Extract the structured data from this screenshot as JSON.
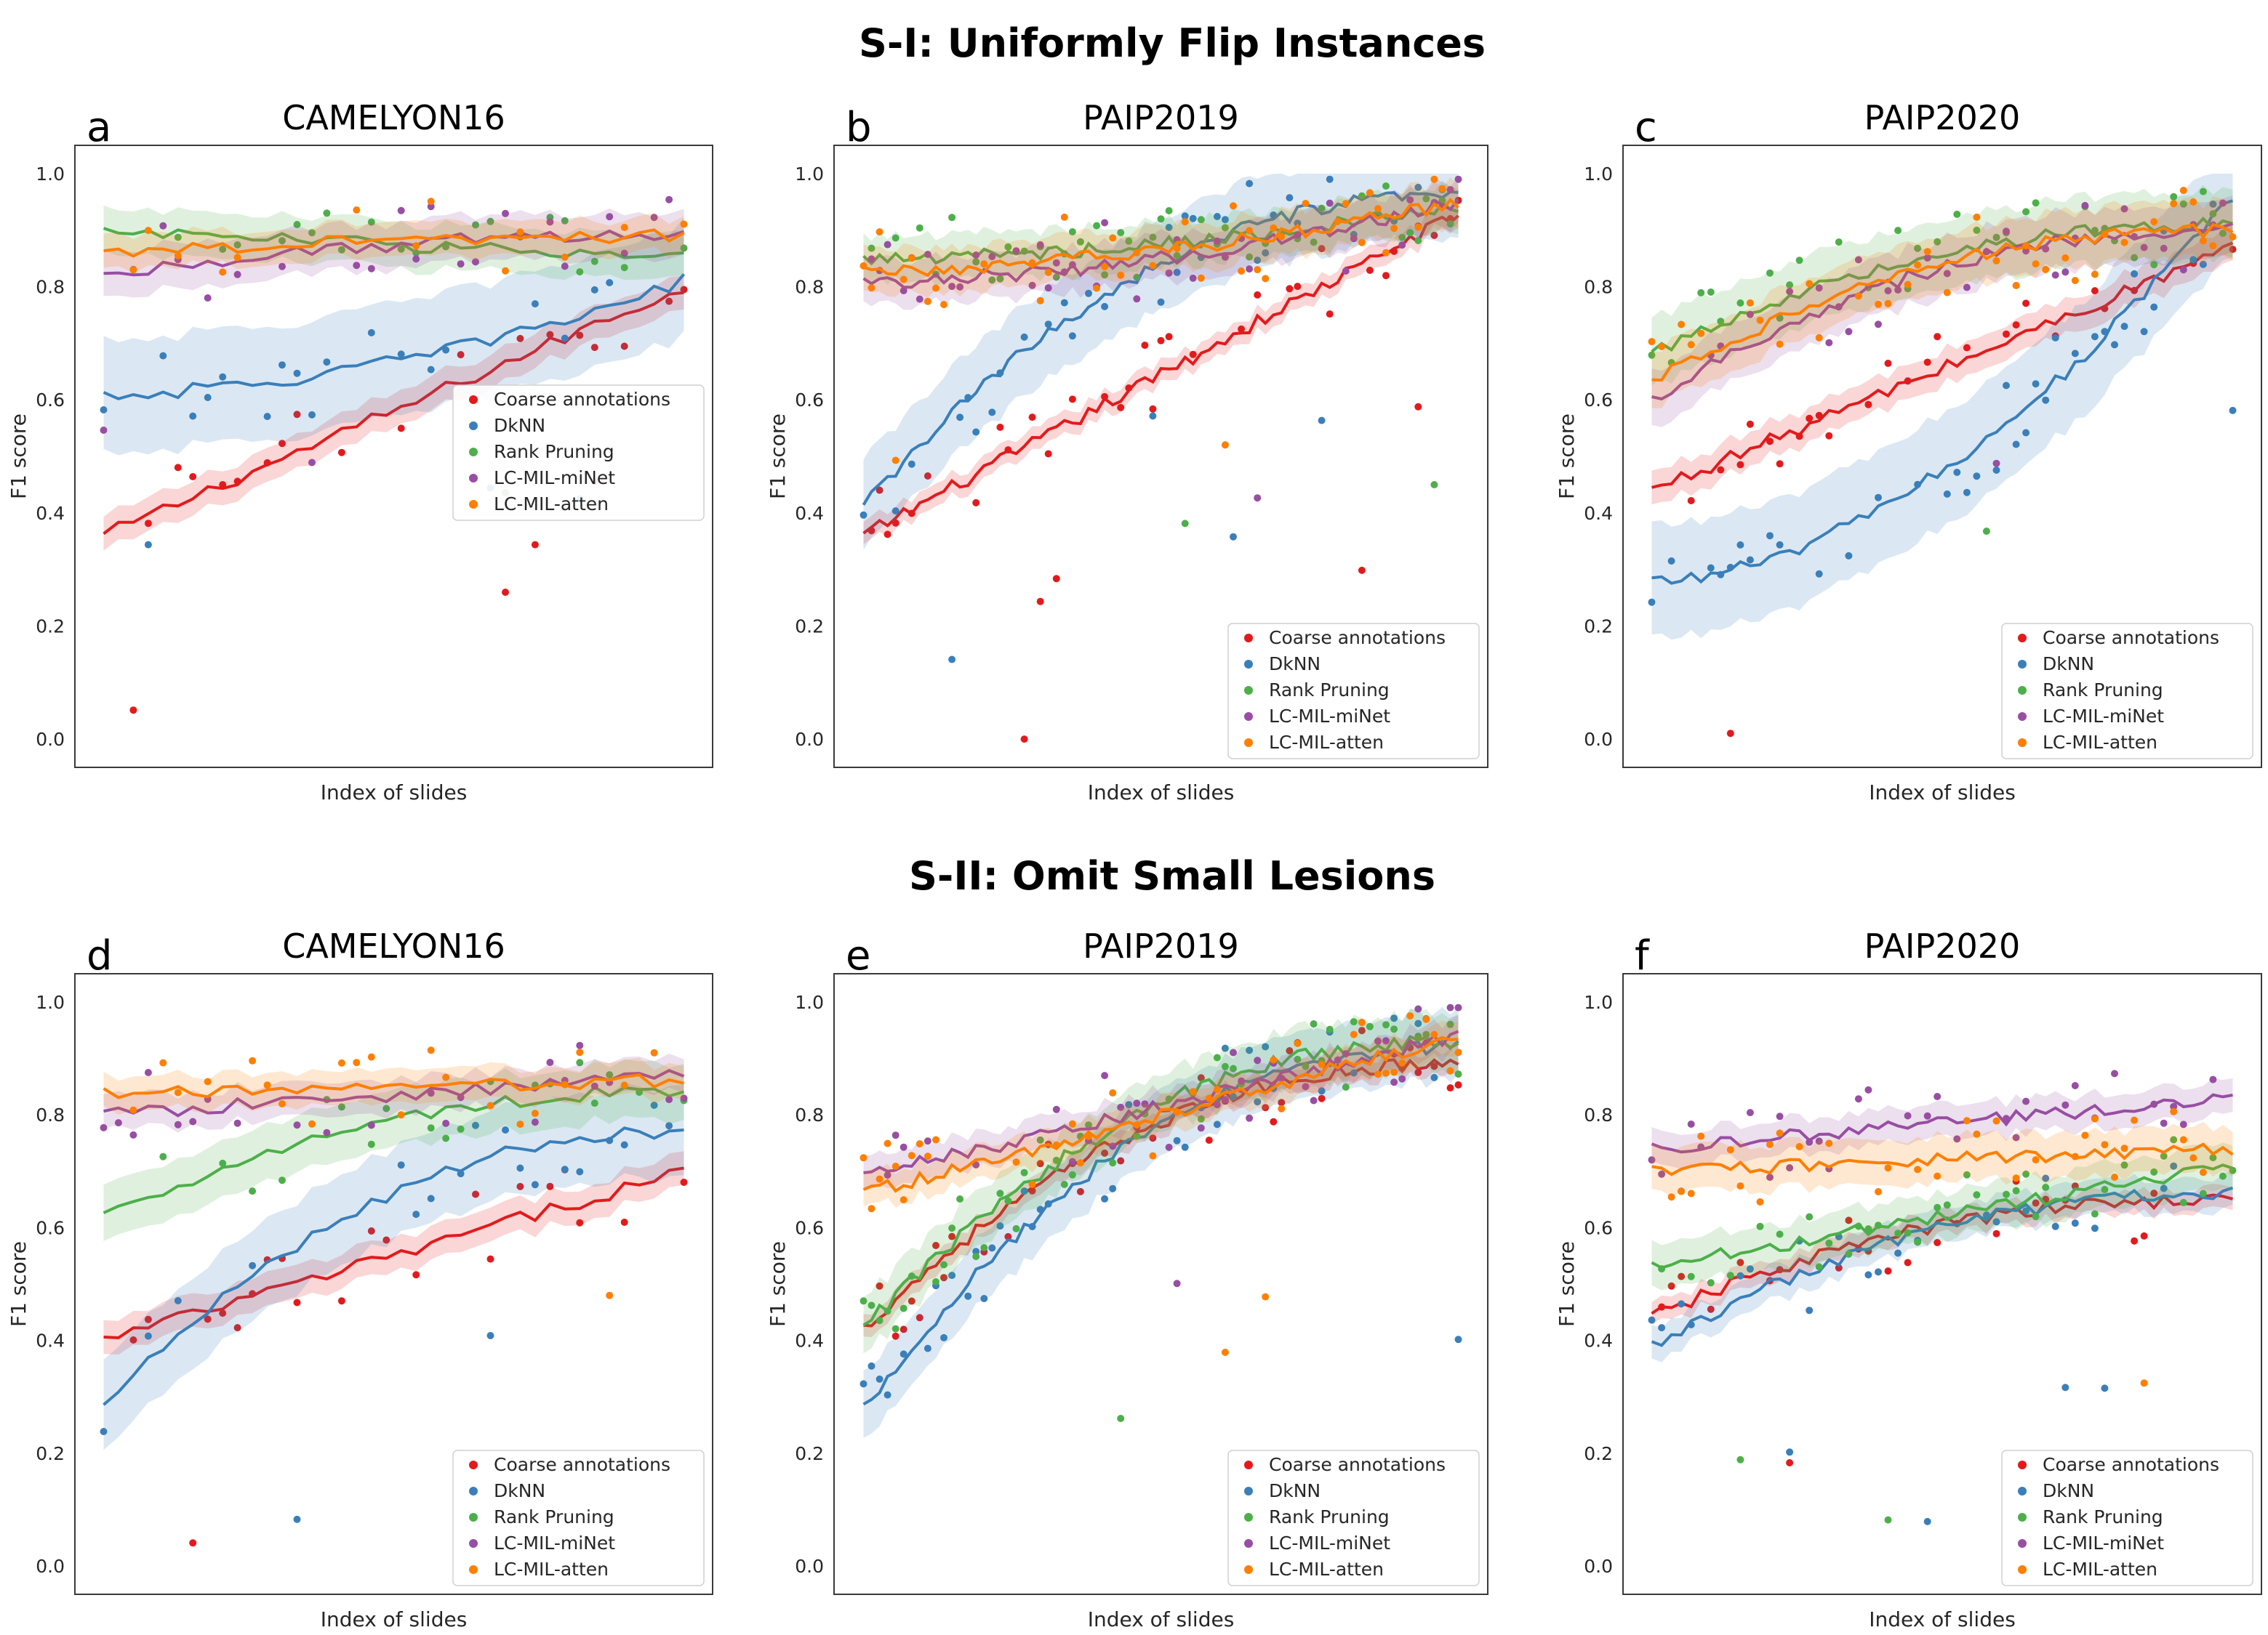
{
  "section_titles": [
    "S-I: Uniformly Flip Instances",
    "S-II: Omit Small Lesions"
  ],
  "colors": {
    "Coarse annotations": "#e31a1c",
    "DkNN": "#3a7fba",
    "Rank Pruning": "#4daf4a",
    "LC-MIL-miNet": "#984ea3",
    "LC-MIL-atten": "#ff7f00"
  },
  "chart_data": [
    {
      "type": "scatter",
      "panel": "a",
      "title": "CAMELYON16",
      "xlabel": "Index of slides",
      "ylabel": "F1 score",
      "ylim": [
        -0.05,
        1.05
      ],
      "yticks": [
        "0.0",
        "0.2",
        "0.4",
        "0.6",
        "0.8",
        "1.0"
      ],
      "n_slides": 40,
      "legend": [
        "Coarse annotations",
        "DkNN",
        "Rank Pruning",
        "LC-MIL-miNet",
        "LC-MIL-atten"
      ],
      "series": [
        {
          "name": "Coarse annotations",
          "trend_start": 0.36,
          "trend_end": 0.8,
          "trend_shape": "linear",
          "band": 0.03
        },
        {
          "name": "DkNN",
          "trend_start": 0.61,
          "trend_end": 0.81,
          "trend_shape": "late",
          "band": 0.1
        },
        {
          "name": "Rank Pruning",
          "trend_start": 0.9,
          "trend_end": 0.85,
          "trend_shape": "linear",
          "band": 0.04
        },
        {
          "name": "LC-MIL-miNet",
          "trend_start": 0.82,
          "trend_end": 0.89,
          "trend_shape": "early",
          "band": 0.04
        },
        {
          "name": "LC-MIL-atten",
          "trend_start": 0.86,
          "trend_end": 0.89,
          "trend_shape": "early",
          "band": 0.03
        }
      ]
    },
    {
      "type": "scatter",
      "panel": "b",
      "title": "PAIP2019",
      "xlabel": "Index of slides",
      "ylabel": "F1 score",
      "ylim": [
        -0.05,
        1.05
      ],
      "yticks": [
        "0.0",
        "0.2",
        "0.4",
        "0.6",
        "0.8",
        "1.0"
      ],
      "n_slides": 75,
      "legend": [
        "Coarse annotations",
        "DkNN",
        "Rank Pruning",
        "LC-MIL-miNet",
        "LC-MIL-atten"
      ],
      "series": [
        {
          "name": "Coarse annotations",
          "trend_start": 0.36,
          "trend_end": 0.93,
          "trend_shape": "linear",
          "band": 0.02
        },
        {
          "name": "DkNN",
          "trend_start": 0.41,
          "trend_end": 0.96,
          "trend_shape": "early",
          "band": 0.08
        },
        {
          "name": "Rank Pruning",
          "trend_start": 0.85,
          "trend_end": 0.94,
          "trend_shape": "late",
          "band": 0.04
        },
        {
          "name": "LC-MIL-miNet",
          "trend_start": 0.81,
          "trend_end": 0.95,
          "trend_shape": "late",
          "band": 0.04
        },
        {
          "name": "LC-MIL-atten",
          "trend_start": 0.83,
          "trend_end": 0.95,
          "trend_shape": "late",
          "band": 0.04
        }
      ]
    },
    {
      "type": "scatter",
      "panel": "c",
      "title": "PAIP2020",
      "xlabel": "Index of slides",
      "ylabel": "F1 score",
      "ylim": [
        -0.05,
        1.05
      ],
      "yticks": [
        "0.0",
        "0.2",
        "0.4",
        "0.6",
        "0.8",
        "1.0"
      ],
      "n_slides": 60,
      "legend": [
        "Coarse annotations",
        "DkNN",
        "Rank Pruning",
        "LC-MIL-miNet",
        "LC-MIL-atten"
      ],
      "series": [
        {
          "name": "Coarse annotations",
          "trend_start": 0.44,
          "trend_end": 0.87,
          "trend_shape": "linear",
          "band": 0.03
        },
        {
          "name": "DkNN",
          "trend_start": 0.28,
          "trend_end": 0.96,
          "trend_shape": "late",
          "band": 0.1
        },
        {
          "name": "Rank Pruning",
          "trend_start": 0.68,
          "trend_end": 0.91,
          "trend_shape": "early",
          "band": 0.06
        },
        {
          "name": "LC-MIL-miNet",
          "trend_start": 0.6,
          "trend_end": 0.9,
          "trend_shape": "early",
          "band": 0.05
        },
        {
          "name": "LC-MIL-atten",
          "trend_start": 0.63,
          "trend_end": 0.9,
          "trend_shape": "early",
          "band": 0.05
        }
      ]
    },
    {
      "type": "scatter",
      "panel": "d",
      "title": "CAMELYON16",
      "xlabel": "Index of slides",
      "ylabel": "F1 score",
      "ylim": [
        -0.05,
        1.05
      ],
      "yticks": [
        "0.0",
        "0.2",
        "0.4",
        "0.6",
        "0.8",
        "1.0"
      ],
      "n_slides": 40,
      "legend": [
        "Coarse annotations",
        "DkNN",
        "Rank Pruning",
        "LC-MIL-miNet",
        "LC-MIL-atten"
      ],
      "series": [
        {
          "name": "Coarse annotations",
          "trend_start": 0.4,
          "trend_end": 0.7,
          "trend_shape": "linear",
          "band": 0.03
        },
        {
          "name": "DkNN",
          "trend_start": 0.28,
          "trend_end": 0.77,
          "trend_shape": "early",
          "band": 0.08
        },
        {
          "name": "Rank Pruning",
          "trend_start": 0.62,
          "trend_end": 0.84,
          "trend_shape": "early",
          "band": 0.05
        },
        {
          "name": "LC-MIL-miNet",
          "trend_start": 0.8,
          "trend_end": 0.87,
          "trend_shape": "linear",
          "band": 0.03
        },
        {
          "name": "LC-MIL-atten",
          "trend_start": 0.84,
          "trend_end": 0.86,
          "trend_shape": "linear",
          "band": 0.03
        }
      ]
    },
    {
      "type": "scatter",
      "panel": "e",
      "title": "PAIP2019",
      "xlabel": "Index of slides",
      "ylabel": "F1 score",
      "ylim": [
        -0.05,
        1.05
      ],
      "yticks": [
        "0.0",
        "0.2",
        "0.4",
        "0.6",
        "0.8",
        "1.0"
      ],
      "n_slides": 75,
      "legend": [
        "Coarse annotations",
        "DkNN",
        "Rank Pruning",
        "LC-MIL-miNet",
        "LC-MIL-atten"
      ],
      "series": [
        {
          "name": "Coarse annotations",
          "trend_start": 0.42,
          "trend_end": 0.89,
          "trend_shape": "early",
          "band": 0.02
        },
        {
          "name": "DkNN",
          "trend_start": 0.28,
          "trend_end": 0.92,
          "trend_shape": "early",
          "band": 0.06
        },
        {
          "name": "Rank Pruning",
          "trend_start": 0.42,
          "trend_end": 0.93,
          "trend_shape": "early",
          "band": 0.05
        },
        {
          "name": "LC-MIL-miNet",
          "trend_start": 0.69,
          "trend_end": 0.94,
          "trend_shape": "linear",
          "band": 0.03
        },
        {
          "name": "LC-MIL-atten",
          "trend_start": 0.66,
          "trend_end": 0.94,
          "trend_shape": "linear",
          "band": 0.03
        }
      ]
    },
    {
      "type": "scatter",
      "panel": "f",
      "title": "PAIP2020",
      "xlabel": "Index of slides",
      "ylabel": "F1 score",
      "ylim": [
        -0.05,
        1.05
      ],
      "yticks": [
        "0.0",
        "0.2",
        "0.4",
        "0.6",
        "0.8",
        "1.0"
      ],
      "n_slides": 60,
      "legend": [
        "Coarse annotations",
        "DkNN",
        "Rank Pruning",
        "LC-MIL-miNet",
        "LC-MIL-atten"
      ],
      "series": [
        {
          "name": "Coarse annotations",
          "trend_start": 0.44,
          "trend_end": 0.65,
          "trend_shape": "early",
          "band": 0.02
        },
        {
          "name": "DkNN",
          "trend_start": 0.39,
          "trend_end": 0.66,
          "trend_shape": "early",
          "band": 0.03
        },
        {
          "name": "Rank Pruning",
          "trend_start": 0.53,
          "trend_end": 0.71,
          "trend_shape": "linear",
          "band": 0.04
        },
        {
          "name": "LC-MIL-miNet",
          "trend_start": 0.74,
          "trend_end": 0.83,
          "trend_shape": "linear",
          "band": 0.03
        },
        {
          "name": "LC-MIL-atten",
          "trend_start": 0.7,
          "trend_end": 0.74,
          "trend_shape": "linear",
          "band": 0.04
        }
      ]
    }
  ]
}
